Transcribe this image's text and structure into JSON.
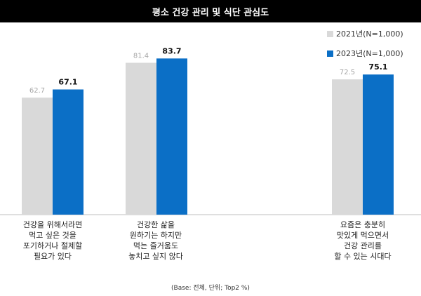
{
  "chart_data": {
    "type": "bar",
    "title": "평소 건강 관리 및 식단 관심도",
    "categories": [
      "건강을 위해서라면\n먹고 싶은 것을\n포기하거나 절제할\n필요가 있다",
      "건강한 삶을\n원하기는 하지만\n먹는 즐거움도\n놓치고 싶지 않다",
      "요즘은 충분히\n맛있게 먹으면서\n건강 관리를\n할 수 있는 시대다"
    ],
    "series": [
      {
        "name": "2021년(N=1,000)",
        "values": [
          62.7,
          81.4,
          72.5
        ],
        "color": "#d9d9d9"
      },
      {
        "name": "2023년(N=1,000)",
        "values": [
          67.1,
          83.7,
          75.1
        ],
        "color": "#0b6fc6"
      }
    ],
    "ylim": [
      0,
      100
    ],
    "grid": false,
    "legend_position": "top-right"
  },
  "footnote": "(Base: 전체, 단위; Top2 %)"
}
